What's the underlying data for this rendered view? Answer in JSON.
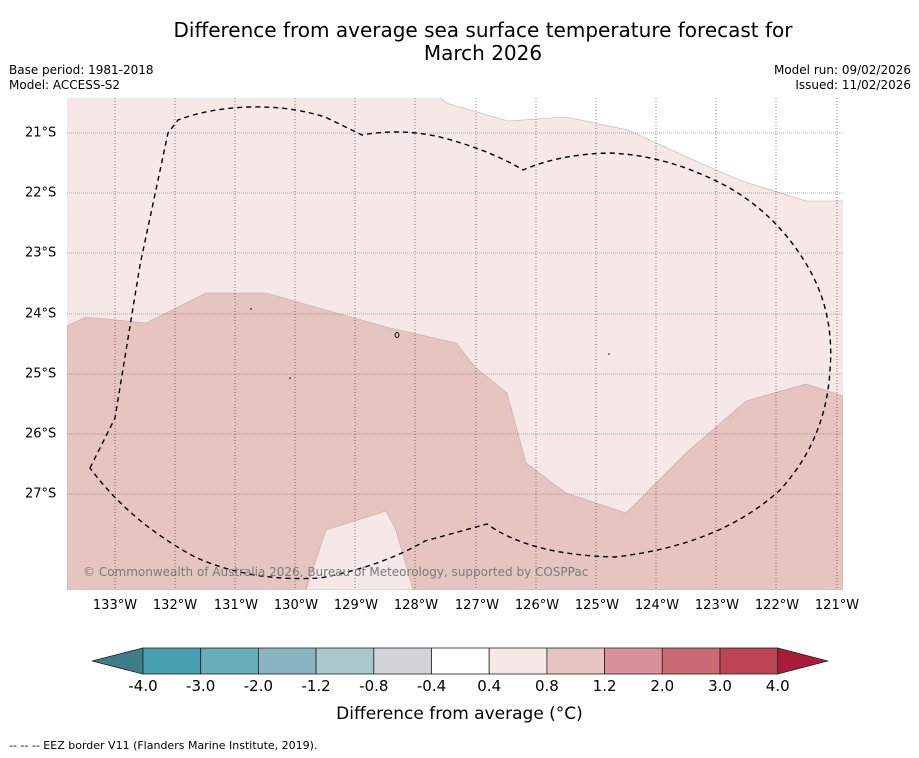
{
  "title_line1": "Difference from average sea surface temperature forecast for",
  "title_line2": "March 2026",
  "base_period": "Base period: 1981-2018",
  "model": "Model: ACCESS-S2",
  "model_run": "Model run: 09/02/2026",
  "issued": "Issued: 11/02/2026",
  "lat_labels": [
    "21°S",
    "22°S",
    "23°S",
    "24°S",
    "25°S",
    "26°S",
    "27°S"
  ],
  "lon_labels": [
    "133°W",
    "132°W",
    "131°W",
    "130°W",
    "129°W",
    "128°W",
    "127°W",
    "126°W",
    "125°W",
    "124°W",
    "123°W",
    "122°W",
    "121°W"
  ],
  "copyright": "© Commonwealth of Australia 2026, Bureau of Meteorology, supported by COSPPac",
  "colorbar": {
    "ticks": [
      "-4.0",
      "-3.0",
      "-2.0",
      "-1.2",
      "-0.8",
      "-0.4",
      "0.4",
      "0.8",
      "1.2",
      "2.0",
      "3.0",
      "4.0"
    ],
    "colors": [
      "#3f7e86",
      "#45a0b0",
      "#68abb9",
      "#89b5c1",
      "#a8c8cc",
      "#d2d5d8",
      "#ffffff",
      "#f5e8e6",
      "#e6c5c0",
      "#d8919a",
      "#cb6a74",
      "#bd4455",
      "#a81c3a"
    ],
    "label": "Difference from average ($^\\circ$C)",
    "label_display": "Difference from average (°C)"
  },
  "fill_colors": {
    "light": "#f5e8e6",
    "medium": "#e6c5c0"
  },
  "footer": "--  --  -- EEZ border V11 (Flanders Marine Institute, 2019)."
}
